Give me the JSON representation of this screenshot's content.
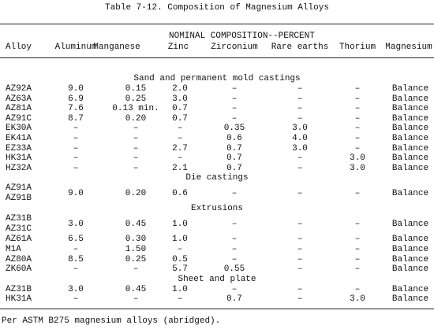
{
  "title": "Table 7-12. Composition of Magnesium Alloys",
  "group_header": "NOMINAL COMPOSITION--PERCENT",
  "columns": [
    "Alloy",
    "Aluminum",
    "Manganese",
    "Zinc",
    "Zirconium",
    "Rare earths",
    "Thorium",
    "Magnesium"
  ],
  "sections": [
    {
      "title": "Sand and permanent mold castings",
      "rows": [
        [
          "AZ92A",
          "9.0",
          "0.15",
          "2.0",
          "–",
          "–",
          "–",
          "Balance"
        ],
        [
          "AZ63A",
          "6.9",
          "0.25",
          "3.0",
          "–",
          "–",
          "–",
          "Balance"
        ],
        [
          "AZ81A",
          "7.6",
          "0.13 min.",
          "0.7",
          "–",
          "–",
          "–",
          "Balance"
        ],
        [
          "AZ91C",
          "8.7",
          "0.20",
          "0.7",
          "–",
          "–",
          "–",
          "Balance"
        ],
        [
          "EK30A",
          "–",
          "–",
          "–",
          "0.35",
          "3.0",
          "–",
          "Balance"
        ],
        [
          "EK41A",
          "–",
          "–",
          "–",
          "0.6",
          "4.0",
          "–",
          "Balance"
        ],
        [
          "EZ33A",
          "–",
          "–",
          "2.7",
          "0.7",
          "3.0",
          "–",
          "Balance"
        ],
        [
          "HK31A",
          "–",
          "–",
          "–",
          "0.7",
          "–",
          "3.0",
          "Balance"
        ],
        [
          "HZ32A",
          "–",
          "–",
          "2.1",
          "0.7",
          "–",
          "3.0",
          "Balance"
        ]
      ]
    },
    {
      "title": "Die castings",
      "rows": [
        [
          [
            "AZ91A",
            "AZ91B"
          ],
          "9.0",
          "0.20",
          "0.6",
          "–",
          "–",
          "–",
          "Balance"
        ]
      ]
    },
    {
      "title": "Extrusions",
      "rows": [
        [
          [
            "AZ31B",
            "AZ31C"
          ],
          "3.0",
          "0.45",
          "1.0",
          "–",
          "–",
          "–",
          "Balance"
        ],
        [
          "AZ61A",
          "6.5",
          "0.30",
          "1.0",
          "–",
          "–",
          "–",
          "Balance"
        ],
        [
          "M1A",
          "–",
          "1.50",
          "–",
          "–",
          "–",
          "–",
          "Balance"
        ],
        [
          "AZ80A",
          "8.5",
          "0.25",
          "0.5",
          "–",
          "–",
          "–",
          "Balance"
        ],
        [
          "ZK60A",
          "–",
          "–",
          "5.7",
          "0.55",
          "–",
          "–",
          "Balance"
        ]
      ]
    },
    {
      "title": "Sheet and plate",
      "rows": [
        [
          "AZ31B",
          "3.0",
          "0.45",
          "1.0",
          "–",
          "–",
          "–",
          "Balance"
        ],
        [
          "HK31A",
          "–",
          "–",
          "–",
          "0.7",
          "–",
          "3.0",
          "Balance"
        ]
      ]
    }
  ],
  "footnote": "Per ASTM B275 magnesium alloys (abridged)."
}
